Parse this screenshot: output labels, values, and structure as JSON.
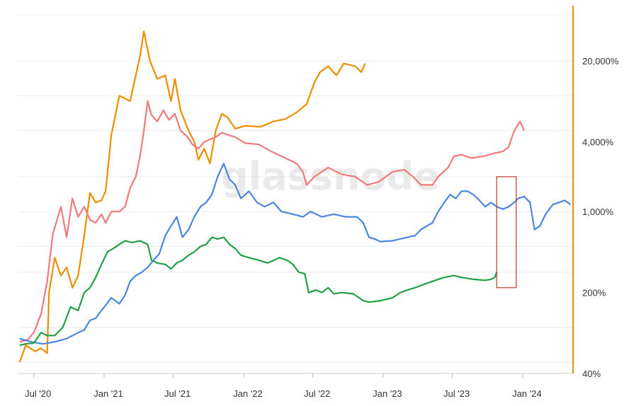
{
  "watermark": "glassnode",
  "chart_data": {
    "type": "line",
    "y_scale": "log",
    "ylim": [
      40,
      60000
    ],
    "xlim": [
      "2020-05-20",
      "2024-05-10"
    ],
    "x_ticks": [
      {
        "date": "2020-07-01",
        "label": "Jul '20"
      },
      {
        "date": "2021-01-01",
        "label": "Jan '21"
      },
      {
        "date": "2021-07-01",
        "label": "Jul '21"
      },
      {
        "date": "2022-01-01",
        "label": "Jan '22"
      },
      {
        "date": "2022-07-01",
        "label": "Jul '22"
      },
      {
        "date": "2023-01-01",
        "label": "Jan '23"
      },
      {
        "date": "2023-07-01",
        "label": "Jul '23"
      },
      {
        "date": "2024-01-01",
        "label": "Jan '24"
      }
    ],
    "y_ticks": [
      {
        "value": 20000,
        "label": "20,000%"
      },
      {
        "value": 4000,
        "label": "4,000%"
      },
      {
        "value": 1000,
        "label": "1,000%"
      },
      {
        "value": 200,
        "label": "200%"
      },
      {
        "value": 40,
        "label": "40%"
      }
    ],
    "grid": true,
    "highlight": {
      "x": [
        "2023-10-25",
        "2023-12-15"
      ],
      "y": [
        220,
        2000
      ],
      "color": "#c0392b"
    },
    "series": [
      {
        "color": "#f08c00",
        "points": [
          [
            "2020-05-25",
            50
          ],
          [
            "2020-06-10",
            70
          ],
          [
            "2020-07-05",
            62
          ],
          [
            "2020-07-20",
            66
          ],
          [
            "2020-08-05",
            60
          ],
          [
            "2020-08-10",
            200
          ],
          [
            "2020-08-25",
            400
          ],
          [
            "2020-09-10",
            280
          ],
          [
            "2020-09-25",
            330
          ],
          [
            "2020-10-10",
            220
          ],
          [
            "2020-10-25",
            280
          ],
          [
            "2020-11-10",
            620
          ],
          [
            "2020-11-25",
            1450
          ],
          [
            "2020-12-10",
            1200
          ],
          [
            "2020-12-25",
            1250
          ],
          [
            "2021-01-05",
            1500
          ],
          [
            "2021-01-20",
            4600
          ],
          [
            "2021-02-10",
            10000
          ],
          [
            "2021-03-10",
            9000
          ],
          [
            "2021-04-05",
            22000
          ],
          [
            "2021-04-15",
            36000
          ],
          [
            "2021-05-01",
            20000
          ],
          [
            "2021-05-20",
            14000
          ],
          [
            "2021-06-10",
            15000
          ],
          [
            "2021-06-25",
            9000
          ],
          [
            "2021-07-05",
            14000
          ],
          [
            "2021-07-20",
            7500
          ],
          [
            "2021-08-10",
            5000
          ],
          [
            "2021-08-25",
            4000
          ],
          [
            "2021-09-05",
            2800
          ],
          [
            "2021-09-20",
            3500
          ],
          [
            "2021-10-05",
            2600
          ],
          [
            "2021-10-20",
            5000
          ],
          [
            "2021-11-05",
            7000
          ],
          [
            "2021-11-20",
            6500
          ],
          [
            "2021-12-10",
            5200
          ],
          [
            "2022-01-05",
            5500
          ],
          [
            "2022-02-15",
            5400
          ],
          [
            "2022-03-20",
            6000
          ],
          [
            "2022-04-20",
            6300
          ],
          [
            "2022-05-20",
            7200
          ],
          [
            "2022-06-15",
            8500
          ],
          [
            "2022-07-05",
            13000
          ],
          [
            "2022-07-20",
            16000
          ],
          [
            "2022-08-10",
            18000
          ],
          [
            "2022-09-01",
            15000
          ],
          [
            "2022-09-20",
            19000
          ],
          [
            "2022-10-20",
            18000
          ],
          [
            "2022-11-05",
            16000
          ],
          [
            "2022-11-15",
            19000
          ]
        ]
      },
      {
        "color": "#f07a7a",
        "points": [
          [
            "2020-05-25",
            75
          ],
          [
            "2020-06-15",
            78
          ],
          [
            "2020-07-01",
            90
          ],
          [
            "2020-07-20",
            130
          ],
          [
            "2020-08-05",
            250
          ],
          [
            "2020-08-20",
            640
          ],
          [
            "2020-09-10",
            1100
          ],
          [
            "2020-09-25",
            600
          ],
          [
            "2020-10-10",
            1300
          ],
          [
            "2020-10-25",
            900
          ],
          [
            "2020-11-10",
            1100
          ],
          [
            "2020-11-25",
            850
          ],
          [
            "2020-12-10",
            800
          ],
          [
            "2020-12-25",
            950
          ],
          [
            "2021-01-05",
            800
          ],
          [
            "2021-01-20",
            1000
          ],
          [
            "2021-02-10",
            1000
          ],
          [
            "2021-02-25",
            1100
          ],
          [
            "2021-03-10",
            1600
          ],
          [
            "2021-03-25",
            2000
          ],
          [
            "2021-04-05",
            3000
          ],
          [
            "2021-04-15",
            5000
          ],
          [
            "2021-04-25",
            9000
          ],
          [
            "2021-05-05",
            6800
          ],
          [
            "2021-05-20",
            6000
          ],
          [
            "2021-06-05",
            7500
          ],
          [
            "2021-06-20",
            6200
          ],
          [
            "2021-07-05",
            7000
          ],
          [
            "2021-07-20",
            5000
          ],
          [
            "2021-08-05",
            4500
          ],
          [
            "2021-08-20",
            3800
          ],
          [
            "2021-09-05",
            3500
          ],
          [
            "2021-09-20",
            4000
          ],
          [
            "2021-10-05",
            4200
          ],
          [
            "2021-10-20",
            4400
          ],
          [
            "2021-11-05",
            4800
          ],
          [
            "2021-11-20",
            4600
          ],
          [
            "2021-12-10",
            4400
          ],
          [
            "2022-01-05",
            3900
          ],
          [
            "2022-02-10",
            3800
          ],
          [
            "2022-03-15",
            3300
          ],
          [
            "2022-04-20",
            2900
          ],
          [
            "2022-05-20",
            2600
          ],
          [
            "2022-06-05",
            2200
          ],
          [
            "2022-06-15",
            1700
          ],
          [
            "2022-07-05",
            2000
          ],
          [
            "2022-08-10",
            2400
          ],
          [
            "2022-09-15",
            2100
          ],
          [
            "2022-10-20",
            2000
          ],
          [
            "2022-11-20",
            1700
          ],
          [
            "2022-12-20",
            1800
          ],
          [
            "2023-01-25",
            2200
          ],
          [
            "2023-02-25",
            2300
          ],
          [
            "2023-03-20",
            2000
          ],
          [
            "2023-04-10",
            1700
          ],
          [
            "2023-05-10",
            1700
          ],
          [
            "2023-05-25",
            2000
          ],
          [
            "2023-06-20",
            2400
          ],
          [
            "2023-07-05",
            3000
          ],
          [
            "2023-07-25",
            3100
          ],
          [
            "2023-08-20",
            2900
          ],
          [
            "2023-09-20",
            3000
          ],
          [
            "2023-10-20",
            3200
          ],
          [
            "2023-11-10",
            3300
          ],
          [
            "2023-11-25",
            3600
          ],
          [
            "2023-12-10",
            5000
          ],
          [
            "2023-12-25",
            6000
          ],
          [
            "2024-01-05",
            5000
          ]
        ]
      },
      {
        "color": "#4a86e0",
        "points": [
          [
            "2020-05-25",
            80
          ],
          [
            "2020-06-25",
            75
          ],
          [
            "2020-07-25",
            72
          ],
          [
            "2020-08-25",
            75
          ],
          [
            "2020-09-25",
            80
          ],
          [
            "2020-10-25",
            90
          ],
          [
            "2020-11-10",
            95
          ],
          [
            "2020-11-25",
            115
          ],
          [
            "2020-12-10",
            120
          ],
          [
            "2020-12-25",
            140
          ],
          [
            "2021-01-05",
            155
          ],
          [
            "2021-01-20",
            180
          ],
          [
            "2021-02-10",
            160
          ],
          [
            "2021-02-25",
            190
          ],
          [
            "2021-03-10",
            250
          ],
          [
            "2021-03-25",
            280
          ],
          [
            "2021-04-10",
            300
          ],
          [
            "2021-04-25",
            330
          ],
          [
            "2021-05-10",
            380
          ],
          [
            "2021-05-25",
            430
          ],
          [
            "2021-06-10",
            620
          ],
          [
            "2021-06-25",
            750
          ],
          [
            "2021-07-10",
            900
          ],
          [
            "2021-07-25",
            600
          ],
          [
            "2021-08-10",
            700
          ],
          [
            "2021-08-25",
            900
          ],
          [
            "2021-09-10",
            1100
          ],
          [
            "2021-09-25",
            1200
          ],
          [
            "2021-10-10",
            1400
          ],
          [
            "2021-10-25",
            2000
          ],
          [
            "2021-11-10",
            2600
          ],
          [
            "2021-11-25",
            1900
          ],
          [
            "2021-12-10",
            1700
          ],
          [
            "2021-12-25",
            1300
          ],
          [
            "2022-01-15",
            1500
          ],
          [
            "2022-02-05",
            1200
          ],
          [
            "2022-02-25",
            1100
          ],
          [
            "2022-03-20",
            1200
          ],
          [
            "2022-04-10",
            1000
          ],
          [
            "2022-05-10",
            950
          ],
          [
            "2022-06-05",
            900
          ],
          [
            "2022-06-25",
            1000
          ],
          [
            "2022-07-25",
            900
          ],
          [
            "2022-08-25",
            950
          ],
          [
            "2022-09-25",
            900
          ],
          [
            "2022-10-25",
            900
          ],
          [
            "2022-11-10",
            800
          ],
          [
            "2022-11-25",
            600
          ],
          [
            "2022-12-10",
            580
          ],
          [
            "2022-12-25",
            550
          ],
          [
            "2023-01-25",
            560
          ],
          [
            "2023-02-25",
            590
          ],
          [
            "2023-03-25",
            620
          ],
          [
            "2023-04-10",
            700
          ],
          [
            "2023-04-25",
            750
          ],
          [
            "2023-05-10",
            800
          ],
          [
            "2023-05-25",
            1000
          ],
          [
            "2023-06-10",
            1200
          ],
          [
            "2023-06-25",
            1400
          ],
          [
            "2023-07-10",
            1300
          ],
          [
            "2023-07-25",
            1500
          ],
          [
            "2023-08-10",
            1500
          ],
          [
            "2023-08-25",
            1400
          ],
          [
            "2023-09-10",
            1250
          ],
          [
            "2023-09-25",
            1100
          ],
          [
            "2023-10-10",
            1200
          ],
          [
            "2023-10-25",
            1100
          ],
          [
            "2023-11-10",
            1050
          ],
          [
            "2023-11-25",
            1100
          ],
          [
            "2023-12-10",
            1200
          ],
          [
            "2023-12-20",
            1300
          ],
          [
            "2024-01-05",
            1350
          ],
          [
            "2024-01-20",
            1200
          ],
          [
            "2024-02-01",
            700
          ],
          [
            "2024-02-15",
            750
          ],
          [
            "2024-03-01",
            950
          ],
          [
            "2024-03-20",
            1150
          ],
          [
            "2024-04-05",
            1200
          ],
          [
            "2024-04-20",
            1250
          ],
          [
            "2024-05-05",
            1150
          ]
        ]
      },
      {
        "color": "#22a045",
        "points": [
          [
            "2020-05-25",
            70
          ],
          [
            "2020-06-10",
            72
          ],
          [
            "2020-07-01",
            73
          ],
          [
            "2020-07-20",
            90
          ],
          [
            "2020-08-05",
            85
          ],
          [
            "2020-08-25",
            85
          ],
          [
            "2020-09-15",
            100
          ],
          [
            "2020-10-05",
            150
          ],
          [
            "2020-10-25",
            140
          ],
          [
            "2020-11-10",
            200
          ],
          [
            "2020-11-25",
            220
          ],
          [
            "2020-12-10",
            270
          ],
          [
            "2020-12-25",
            350
          ],
          [
            "2021-01-10",
            450
          ],
          [
            "2021-01-25",
            480
          ],
          [
            "2021-02-10",
            520
          ],
          [
            "2021-02-25",
            560
          ],
          [
            "2021-03-15",
            540
          ],
          [
            "2021-04-05",
            560
          ],
          [
            "2021-04-25",
            520
          ],
          [
            "2021-05-05",
            380
          ],
          [
            "2021-05-20",
            360
          ],
          [
            "2021-06-10",
            350
          ],
          [
            "2021-06-25",
            320
          ],
          [
            "2021-07-10",
            360
          ],
          [
            "2021-07-25",
            380
          ],
          [
            "2021-08-10",
            420
          ],
          [
            "2021-08-25",
            450
          ],
          [
            "2021-09-10",
            500
          ],
          [
            "2021-09-25",
            520
          ],
          [
            "2021-10-10",
            600
          ],
          [
            "2021-10-25",
            580
          ],
          [
            "2021-11-10",
            600
          ],
          [
            "2021-11-25",
            520
          ],
          [
            "2021-12-10",
            480
          ],
          [
            "2021-12-25",
            420
          ],
          [
            "2022-01-15",
            400
          ],
          [
            "2022-02-10",
            380
          ],
          [
            "2022-03-05",
            360
          ],
          [
            "2022-04-05",
            400
          ],
          [
            "2022-04-25",
            380
          ],
          [
            "2022-05-10",
            350
          ],
          [
            "2022-05-25",
            300
          ],
          [
            "2022-06-10",
            290
          ],
          [
            "2022-06-20",
            200
          ],
          [
            "2022-07-10",
            210
          ],
          [
            "2022-07-25",
            200
          ],
          [
            "2022-08-10",
            220
          ],
          [
            "2022-08-25",
            195
          ],
          [
            "2022-09-15",
            200
          ],
          [
            "2022-10-15",
            195
          ],
          [
            "2022-11-10",
            170
          ],
          [
            "2022-11-25",
            165
          ],
          [
            "2022-12-25",
            170
          ],
          [
            "2023-01-25",
            180
          ],
          [
            "2023-02-15",
            200
          ],
          [
            "2023-03-05",
            210
          ],
          [
            "2023-03-25",
            220
          ],
          [
            "2023-04-10",
            230
          ],
          [
            "2023-04-25",
            240
          ],
          [
            "2023-05-10",
            250
          ],
          [
            "2023-05-25",
            260
          ],
          [
            "2023-06-10",
            270
          ],
          [
            "2023-07-05",
            280
          ],
          [
            "2023-07-25",
            270
          ],
          [
            "2023-08-25",
            260
          ],
          [
            "2023-09-25",
            255
          ],
          [
            "2023-10-10",
            260
          ],
          [
            "2023-10-20",
            270
          ],
          [
            "2023-10-25",
            300
          ]
        ]
      }
    ]
  }
}
